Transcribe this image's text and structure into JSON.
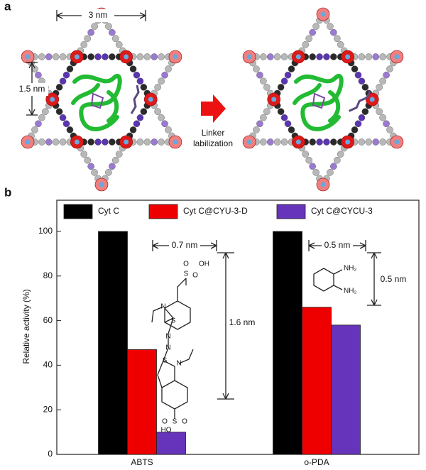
{
  "panel_a": {
    "label": "a",
    "width_label": "3 nm",
    "height_label": "1.5 nm",
    "arrow_label": [
      "Linker",
      "labilization"
    ]
  },
  "chart_data": {
    "type": "bar",
    "panel_label": "b",
    "y_label": "Relative activity (%)",
    "categories": [
      "ABTS",
      "o-PDA"
    ],
    "series": [
      {
        "name": "Cyt C",
        "color": "#000000",
        "values": [
          100,
          100
        ]
      },
      {
        "name": "Cyt C@CYU-3-D",
        "color": "#ee0000",
        "values": [
          47,
          66
        ]
      },
      {
        "name": "Cyt C@CYCU-3",
        "color": "#6633bb",
        "values": [
          10,
          58
        ]
      }
    ],
    "ylim": [
      0,
      114
    ],
    "yticks": [
      0,
      20,
      40,
      60,
      80,
      100
    ],
    "legend": "top",
    "annotations": [
      "0.7 nm",
      "1.6 nm",
      "0.5 nm",
      "0.5 nm"
    ],
    "abts_labels": [
      "OH",
      "S",
      "O",
      "O",
      "N",
      "S",
      "N",
      "N",
      "S",
      "N",
      "O",
      "S",
      "O",
      "HO"
    ],
    "opda_labels": [
      "NH₂",
      "NH₂"
    ]
  }
}
